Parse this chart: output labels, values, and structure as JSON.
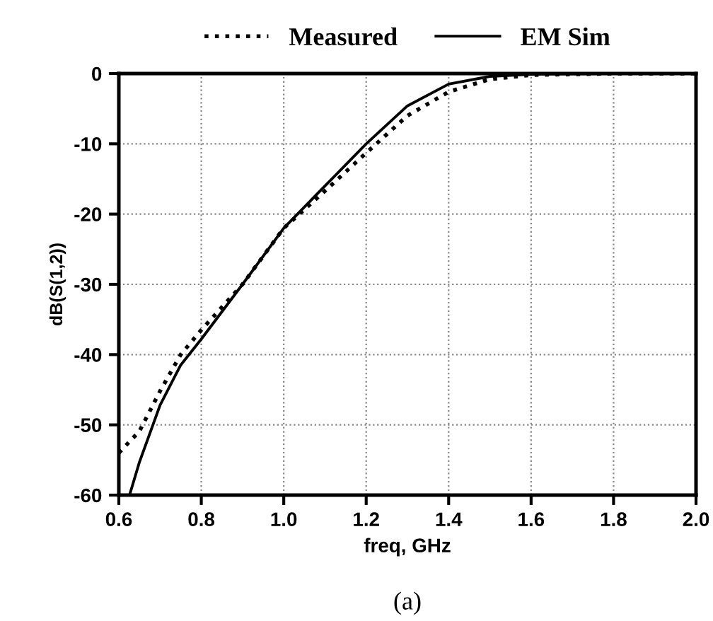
{
  "chart_data": {
    "type": "line",
    "xlabel": "freq, GHz",
    "ylabel": "dB(S(1,2))",
    "annotations": [
      "(a)"
    ],
    "xlim": [
      0.6,
      2.0
    ],
    "xticks": [
      0.6,
      0.8,
      {
        "value": 1.0,
        "label": "1.0"
      },
      1.2,
      1.4,
      1.6,
      1.8,
      {
        "value": 2.0,
        "label": "2.0"
      }
    ],
    "ylim": [
      -60,
      0
    ],
    "yticks": [
      0,
      -10,
      -20,
      -30,
      -40,
      -50,
      -60
    ],
    "grid": true,
    "legend": "top",
    "series": [
      {
        "name": "Measured",
        "color": "#000000",
        "line_style": "dotted",
        "x": [
          0.6,
          0.65,
          0.7,
          0.75,
          0.8,
          0.9,
          1.0,
          1.1,
          1.2,
          1.3,
          1.4,
          1.5,
          1.6,
          1.8,
          2.0
        ],
        "values": [
          -54,
          -50.9,
          -45.2,
          -40,
          -36.5,
          -30,
          -22,
          -16.7,
          -11.3,
          -6,
          -2.6,
          -0.8,
          -0.2,
          0,
          0
        ]
      },
      {
        "name": "EM Sim",
        "color": "#000000",
        "line_style": "solid",
        "x": [
          0.626,
          0.65,
          0.7,
          0.75,
          0.8,
          0.9,
          1.0,
          1.1,
          1.2,
          1.3,
          1.4,
          1.5,
          1.6,
          1.8,
          2.0
        ],
        "values": [
          -60,
          -55.3,
          -47.2,
          -41.5,
          -37.8,
          -30,
          -22,
          -16,
          -10,
          -4.6,
          -1.5,
          -0.4,
          -0.1,
          0,
          0
        ]
      }
    ]
  }
}
